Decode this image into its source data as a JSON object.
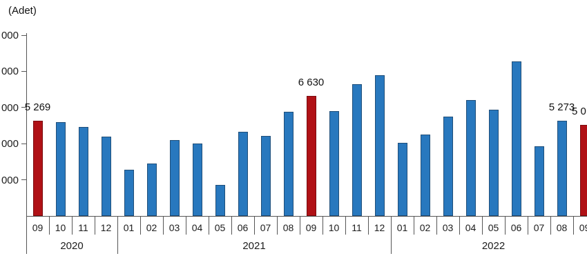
{
  "chart_data": {
    "type": "bar",
    "title": "",
    "unit_label": "(Adet)",
    "grid": false,
    "legend": "none",
    "y_axis": {
      "min": 0,
      "max": 10000,
      "tick_step": 2000,
      "tick_values": [
        2000,
        4000,
        6000,
        8000,
        10000
      ],
      "tick_labels_visible": [
        "000",
        "000",
        "000",
        "000",
        "000"
      ],
      "note": "tick labels are clipped at the left image edge; only the trailing 000 of each number is visible"
    },
    "colors": {
      "bar_fill": "#2878BE",
      "bar_border": "#1F4E79",
      "highlight_fill": "#B01116",
      "highlight_border": "#7A0C10",
      "axis": "#555555"
    },
    "groups": [
      {
        "year": "2020",
        "month_count": 4
      },
      {
        "year": "2021",
        "month_count": 12
      },
      {
        "year": "2022",
        "month_count": 9
      }
    ],
    "points": [
      {
        "year": "2020",
        "month": "09",
        "value": 5269,
        "highlight": true,
        "data_label": "5 269"
      },
      {
        "year": "2020",
        "month": "10",
        "value": 5200,
        "highlight": false
      },
      {
        "year": "2020",
        "month": "11",
        "value": 4930,
        "highlight": false
      },
      {
        "year": "2020",
        "month": "12",
        "value": 4380,
        "highlight": false
      },
      {
        "year": "2021",
        "month": "01",
        "value": 2560,
        "highlight": false
      },
      {
        "year": "2021",
        "month": "02",
        "value": 2890,
        "highlight": false
      },
      {
        "year": "2021",
        "month": "03",
        "value": 4210,
        "highlight": false
      },
      {
        "year": "2021",
        "month": "04",
        "value": 4000,
        "highlight": false
      },
      {
        "year": "2021",
        "month": "05",
        "value": 1710,
        "highlight": false
      },
      {
        "year": "2021",
        "month": "06",
        "value": 4660,
        "highlight": false
      },
      {
        "year": "2021",
        "month": "07",
        "value": 4420,
        "highlight": false
      },
      {
        "year": "2021",
        "month": "08",
        "value": 5780,
        "highlight": false
      },
      {
        "year": "2021",
        "month": "09",
        "value": 6630,
        "highlight": true,
        "data_label": "6 630"
      },
      {
        "year": "2021",
        "month": "10",
        "value": 5800,
        "highlight": false
      },
      {
        "year": "2021",
        "month": "11",
        "value": 7300,
        "highlight": false
      },
      {
        "year": "2021",
        "month": "12",
        "value": 7790,
        "highlight": false
      },
      {
        "year": "2022",
        "month": "01",
        "value": 4060,
        "highlight": false
      },
      {
        "year": "2022",
        "month": "02",
        "value": 4490,
        "highlight": false
      },
      {
        "year": "2022",
        "month": "03",
        "value": 5500,
        "highlight": false
      },
      {
        "year": "2022",
        "month": "04",
        "value": 6430,
        "highlight": false
      },
      {
        "year": "2022",
        "month": "05",
        "value": 5870,
        "highlight": false
      },
      {
        "year": "2022",
        "month": "06",
        "value": 8560,
        "highlight": false
      },
      {
        "year": "2022",
        "month": "07",
        "value": 3870,
        "highlight": false
      },
      {
        "year": "2022",
        "month": "08",
        "value": 5273,
        "highlight": false,
        "data_label": "5 273"
      },
      {
        "year": "2022",
        "month": "09",
        "value": 5030,
        "highlight": true,
        "data_label": "5 0",
        "clipped": true
      }
    ]
  }
}
